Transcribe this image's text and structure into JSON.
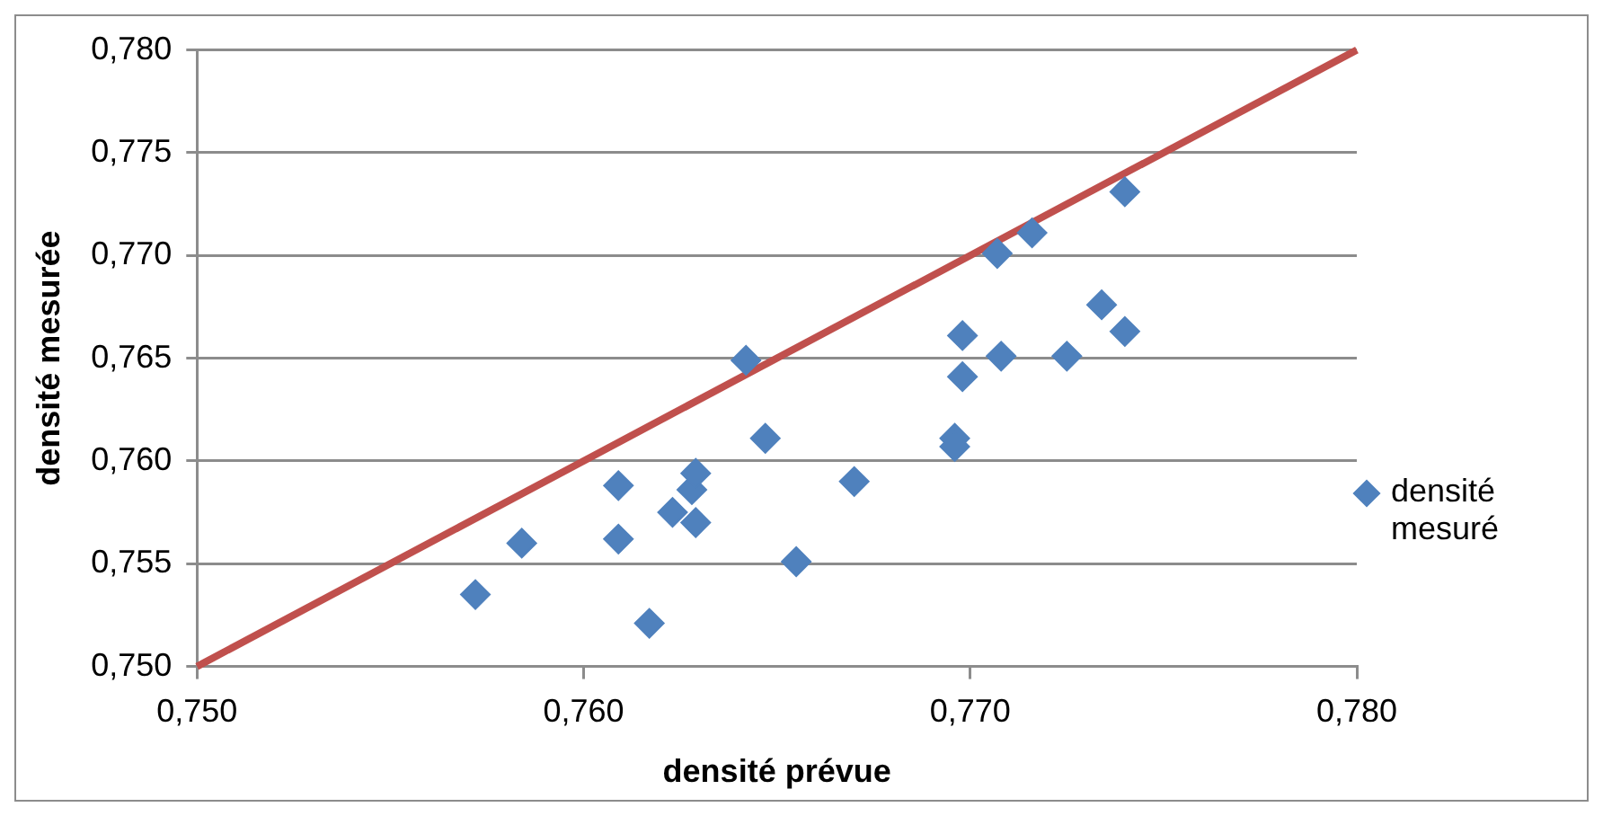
{
  "chart_data": {
    "type": "scatter",
    "xlabel": "densité prévue",
    "ylabel": "densité mesurée",
    "xlim": [
      0.75,
      0.78
    ],
    "xticks": [
      {
        "value": 0.75,
        "label": "0,750"
      },
      {
        "value": 0.76,
        "label": "0,760"
      },
      {
        "value": 0.77,
        "label": "0,770"
      },
      {
        "value": 0.78,
        "label": "0,780"
      }
    ],
    "ylim": [
      0.75,
      0.78
    ],
    "yticks": [
      {
        "value": 0.75,
        "label": "0,750"
      },
      {
        "value": 0.755,
        "label": "0,755"
      },
      {
        "value": 0.76,
        "label": "0,760"
      },
      {
        "value": 0.765,
        "label": "0,765"
      },
      {
        "value": 0.77,
        "label": "0,770"
      },
      {
        "value": 0.775,
        "label": "0,775"
      },
      {
        "value": 0.78,
        "label": "0,780"
      }
    ],
    "grid": "y",
    "legend": "right",
    "marker": "diamond",
    "series": [
      {
        "name": "densité mesuré",
        "type": "scatter",
        "color": "#4f81bd",
        "x": [
          0.7572,
          0.7584,
          0.7609,
          0.7609,
          0.7617,
          0.7623,
          0.7629,
          0.7628,
          0.7629,
          0.7655,
          0.7642,
          0.7647,
          0.767,
          0.7698,
          0.7698,
          0.7696,
          0.7696,
          0.7708,
          0.7725,
          0.7734,
          0.774,
          0.7707,
          0.7716,
          0.774
        ],
        "values": [
          0.7535,
          0.756,
          0.7588,
          0.7562,
          0.7521,
          0.7575,
          0.757,
          0.7586,
          0.7594,
          0.7551,
          0.7649,
          0.7611,
          0.759,
          0.7661,
          0.7641,
          0.7611,
          0.7607,
          0.7651,
          0.7651,
          0.7676,
          0.7663,
          0.7701,
          0.7711,
          0.7731
        ]
      },
      {
        "type": "line",
        "marker": "none",
        "color": "#c0504d",
        "x": [
          0.75,
          0.78
        ],
        "values": [
          0.75,
          0.78
        ]
      }
    ]
  }
}
